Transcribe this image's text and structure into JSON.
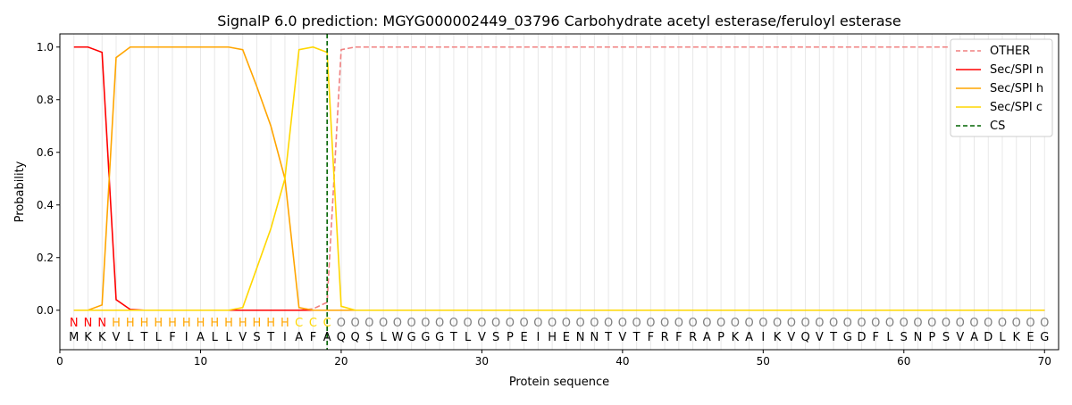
{
  "chart_data": {
    "type": "line",
    "title": "SignalP 6.0 prediction: MGYG000002449_03796 Carbohydrate acetyl esterase/feruloyl esterase",
    "xlabel": "Protein sequence",
    "ylabel": "Probability",
    "xlim": [
      0,
      71
    ],
    "ylim": [
      -0.15,
      1.05
    ],
    "xticks": [
      0,
      10,
      20,
      30,
      40,
      50,
      60,
      70
    ],
    "yticks": [
      0.0,
      0.2,
      0.4,
      0.6,
      0.8,
      1.0
    ],
    "legend_position": "top-right",
    "sequence": "MKKVLTLFIALLVSTIAFAQQSLWGGGTLVSPEIHENNTVTFRFRAPKAIKVQVTGDFLSNPSVADLKEG",
    "labels": "NNNHHHHHHHHHHHHHCCCOOOOOOOOOOOOOOOOOOOOOOOOOOOOOOOOOOOOOOOOOOOOOOOOOOO",
    "label_colors": {
      "N": "#ff0000",
      "H": "#ffa500",
      "C": "#ffd700",
      "O": "#808080"
    },
    "cs_position": 19,
    "series": [
      {
        "name": "OTHER",
        "color": "#f08080",
        "dash": true,
        "values": [
          0,
          0,
          0,
          0,
          0,
          0,
          0,
          0,
          0,
          0,
          0,
          0,
          0,
          0,
          0,
          0,
          0,
          0.005,
          0.03,
          0.99,
          1,
          1,
          1,
          1,
          1,
          1,
          1,
          1,
          1,
          1,
          1,
          1,
          1,
          1,
          1,
          1,
          1,
          1,
          1,
          1,
          1,
          1,
          1,
          1,
          1,
          1,
          1,
          1,
          1,
          1,
          1,
          1,
          1,
          1,
          1,
          1,
          1,
          1,
          1,
          1,
          1,
          1,
          1,
          1,
          1,
          1,
          1,
          1,
          1,
          1
        ]
      },
      {
        "name": "Sec/SPI n",
        "color": "#ff0000",
        "dash": false,
        "values": [
          1,
          1,
          0.98,
          0.04,
          0.003,
          0,
          0,
          0,
          0,
          0,
          0,
          0,
          0,
          0,
          0,
          0,
          0,
          0,
          0,
          0,
          0,
          0,
          0,
          0,
          0,
          0,
          0,
          0,
          0,
          0,
          0,
          0,
          0,
          0,
          0,
          0,
          0,
          0,
          0,
          0,
          0,
          0,
          0,
          0,
          0,
          0,
          0,
          0,
          0,
          0,
          0,
          0,
          0,
          0,
          0,
          0,
          0,
          0,
          0,
          0,
          0,
          0,
          0,
          0,
          0,
          0,
          0,
          0,
          0,
          0
        ]
      },
      {
        "name": "Sec/SPI h",
        "color": "#ffa500",
        "dash": false,
        "values": [
          0,
          0,
          0.02,
          0.96,
          1,
          1,
          1,
          1,
          1,
          1,
          1,
          1,
          0.99,
          0.85,
          0.7,
          0.5,
          0.01,
          0,
          0,
          0,
          0,
          0,
          0,
          0,
          0,
          0,
          0,
          0,
          0,
          0,
          0,
          0,
          0,
          0,
          0,
          0,
          0,
          0,
          0,
          0,
          0,
          0,
          0,
          0,
          0,
          0,
          0,
          0,
          0,
          0,
          0,
          0,
          0,
          0,
          0,
          0,
          0,
          0,
          0,
          0,
          0,
          0,
          0,
          0,
          0,
          0,
          0,
          0,
          0,
          0
        ]
      },
      {
        "name": "Sec/SPI c",
        "color": "#ffd700",
        "dash": false,
        "values": [
          0,
          0,
          0,
          0,
          0,
          0,
          0,
          0,
          0,
          0,
          0,
          0,
          0.01,
          0.16,
          0.31,
          0.5,
          0.99,
          1,
          0.98,
          0.015,
          0,
          0,
          0,
          0,
          0,
          0,
          0,
          0,
          0,
          0,
          0,
          0,
          0,
          0,
          0,
          0,
          0,
          0,
          0,
          0,
          0,
          0,
          0,
          0,
          0,
          0,
          0,
          0,
          0,
          0,
          0,
          0,
          0,
          0,
          0,
          0,
          0,
          0,
          0,
          0,
          0,
          0,
          0,
          0,
          0,
          0,
          0,
          0,
          0,
          0
        ]
      },
      {
        "name": "CS",
        "color": "#006400",
        "dash": true,
        "values": []
      }
    ]
  }
}
